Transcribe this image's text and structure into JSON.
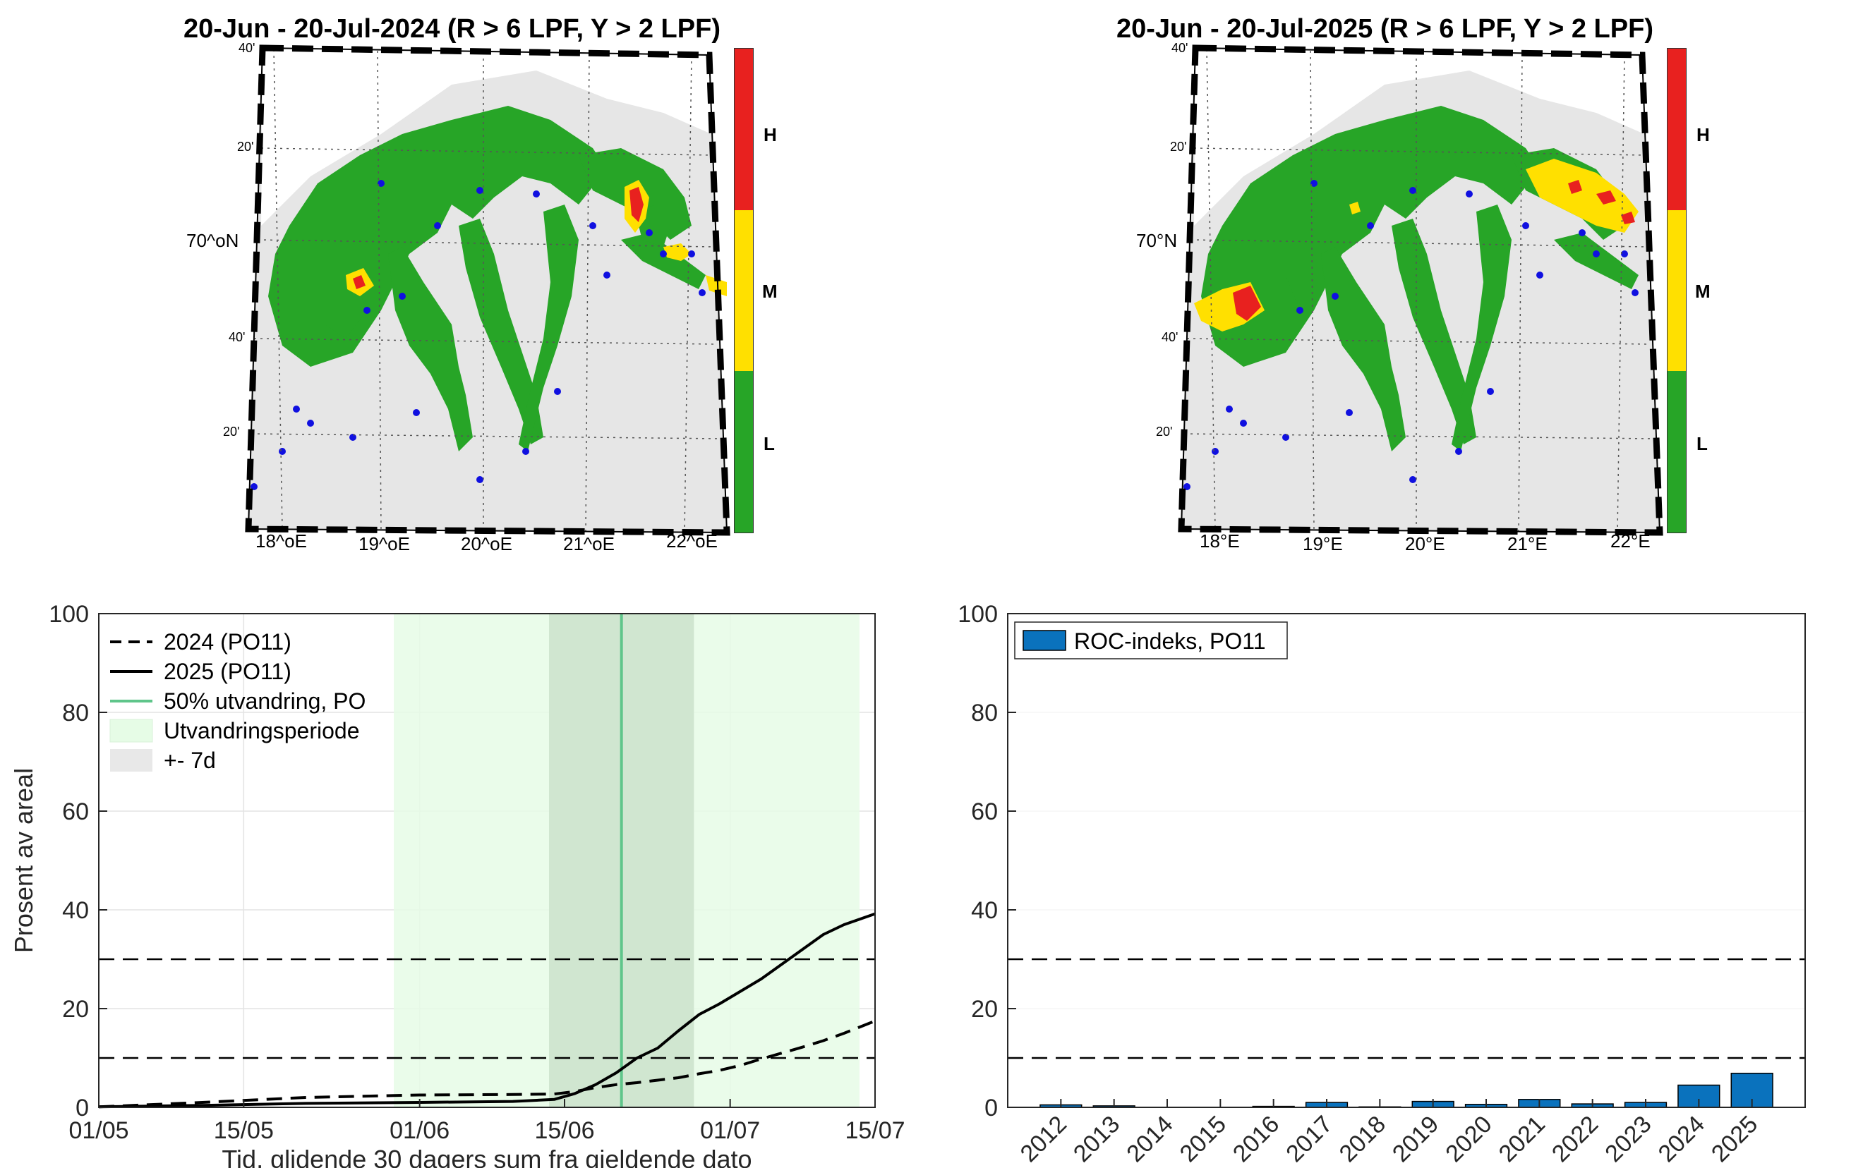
{
  "maps": [
    {
      "title": "20-Jun - 20-Jul-2024  (R > 6 LPF, Y > 2 LPF)",
      "lon_labels": [
        "18^oE",
        "19^oE",
        "20^oE",
        "21^oE",
        "22^oE"
      ],
      "lat_main_label": "70^oN",
      "lat_minor_labels": [
        "40'",
        "20'",
        "40'",
        "20'"
      ],
      "colorbar": [
        {
          "level": "H",
          "color": "#e8211f"
        },
        {
          "level": "M",
          "color": "#ffe000"
        },
        {
          "level": "L",
          "color": "#27a527"
        }
      ]
    },
    {
      "title": "20-Jun - 20-Jul-2025  (R > 6 LPF, Y > 2 LPF)",
      "lon_labels": [
        "18°E",
        "19°E",
        "20°E",
        "21°E",
        "22°E"
      ],
      "lat_main_label": "70°N",
      "lat_minor_labels": [
        "40'",
        "20'",
        "40'",
        "20'"
      ],
      "colorbar": [
        {
          "level": "H",
          "color": "#e8211f"
        },
        {
          "level": "M",
          "color": "#ffe000"
        },
        {
          "level": "L",
          "color": "#27a527"
        }
      ]
    }
  ],
  "colors": {
    "land": "#e6e6e6",
    "sea_green": "#27a527",
    "yellow": "#ffe000",
    "red": "#e8211f",
    "farm": "#1010e0",
    "period_fill": "#e6fce6",
    "pm7_fill": "#d0e6d0",
    "migration_line": "#5fc58a",
    "bar": "#0a72bd"
  },
  "chart_data": [
    {
      "type": "line",
      "xlabel": "Tid, glidende 30 dagers sum fra gjeldende dato",
      "ylabel": "Prosent av areal",
      "ylim": [
        0,
        100
      ],
      "yticks": [
        0,
        20,
        40,
        60,
        80,
        100
      ],
      "xlim_days": [
        0,
        75
      ],
      "xtick_labels": [
        "01/05",
        "15/05",
        "01/06",
        "15/06",
        "01/07",
        "15/07"
      ],
      "xtick_days": [
        0,
        14,
        31,
        45,
        61,
        75
      ],
      "x_days": [
        0,
        10,
        20,
        31,
        40,
        44,
        46,
        48,
        50,
        52,
        54,
        56,
        58,
        60,
        62,
        64,
        66,
        68,
        70,
        72,
        75
      ],
      "series": [
        {
          "name": "2024 (PO11)",
          "style": "dashed",
          "values": [
            0.1,
            1.0,
            2.0,
            2.5,
            2.6,
            2.7,
            3.2,
            4.0,
            4.6,
            5.0,
            5.5,
            6.0,
            6.8,
            7.5,
            8.5,
            9.8,
            11.0,
            12.2,
            13.5,
            15.0,
            17.5
          ]
        },
        {
          "name": "2025 (PO11)",
          "style": "solid",
          "values": [
            0.1,
            0.4,
            0.8,
            1.0,
            1.2,
            1.6,
            2.8,
            4.6,
            7.0,
            10.0,
            12.0,
            15.5,
            18.8,
            21.0,
            23.5,
            26.0,
            29.0,
            32.0,
            35.0,
            37.0,
            39.2
          ]
        }
      ],
      "reference_lines": [
        10,
        30
      ],
      "migration_50_day": 50.5,
      "migration_period_days": [
        28.5,
        73.5
      ],
      "pm7_days": [
        43.5,
        57.5
      ],
      "legend": [
        {
          "label": "2024 (PO11)",
          "kind": "dashed"
        },
        {
          "label": "2025 (PO11)",
          "kind": "solid"
        },
        {
          "label": "50% utvandring, PO",
          "kind": "greenline"
        },
        {
          "label": "Utvandringsperiode",
          "kind": "periodpatch"
        },
        {
          "label": "+- 7d",
          "kind": "greypatch"
        }
      ],
      "legend_position": "top-left"
    },
    {
      "type": "bar",
      "categories": [
        "2012",
        "2013",
        "2014",
        "2015",
        "2016",
        "2017",
        "2018",
        "2019",
        "2020",
        "2021",
        "2022",
        "2023",
        "2024",
        "2025"
      ],
      "values": [
        0.5,
        0.3,
        0.0,
        0.0,
        0.2,
        1.0,
        0.1,
        1.2,
        0.6,
        1.6,
        0.7,
        1.0,
        4.5,
        6.9
      ],
      "series_name": "ROC-indeks, PO11",
      "ylim": [
        0,
        100
      ],
      "yticks": [
        0,
        20,
        40,
        60,
        80,
        100
      ],
      "reference_lines": [
        10,
        30
      ],
      "legend_position": "top-left"
    }
  ]
}
